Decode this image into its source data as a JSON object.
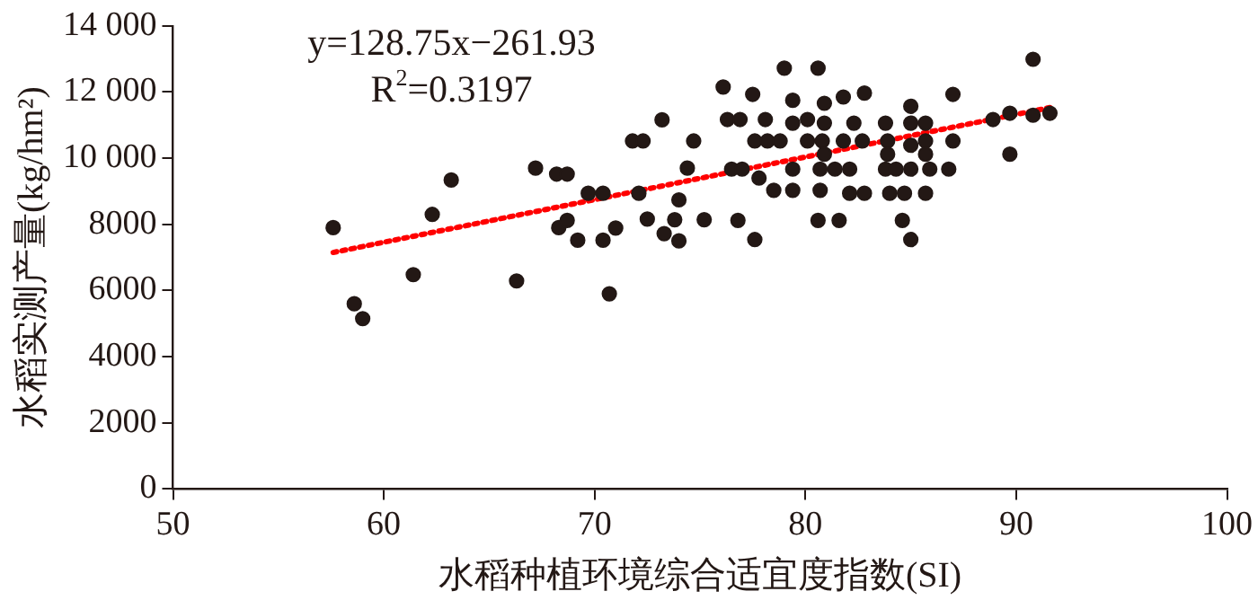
{
  "chart_data": {
    "type": "scatter",
    "xlabel": "水稻种植环境综合适宜度指数(SI)",
    "ylabel": "水稻实测产量(kg/hm²)",
    "xlim": [
      50,
      100
    ],
    "xticks": [
      50,
      60,
      70,
      80,
      90,
      100
    ],
    "ylim": [
      0,
      14000
    ],
    "yticks": [
      0,
      2000,
      4000,
      6000,
      8000,
      {
        "value": 10000,
        "label": "10 000"
      },
      {
        "value": 12000,
        "label": "12 000"
      },
      {
        "value": 14000,
        "label": "14 000"
      }
    ],
    "grid": false,
    "legend": false,
    "marker": "circle",
    "annotations": [
      "y=128.75x−261.93",
      "R$^{2}$=0.3197"
    ],
    "series": [
      {
        "type": "scatter",
        "color": "#231815",
        "x": [
          57.6,
          58.6,
          59.0,
          61.4,
          62.3,
          63.2,
          66.3,
          67.2,
          68.2,
          68.7,
          68.3,
          68.7,
          69.2,
          69.7,
          70.4,
          70.4,
          71.0,
          70.7,
          71.8,
          72.3,
          72.1,
          72.5,
          73.2,
          73.3,
          73.8,
          74.0,
          74.0,
          74.4,
          74.7,
          75.2,
          79.0,
          80.6,
          76.1,
          77.5,
          76.3,
          76.9,
          78.1,
          79.4,
          79.4,
          80.1,
          80.9,
          80.9,
          81.8,
          82.8,
          82.3,
          83.8,
          85.0,
          85.0,
          85.7,
          87.0,
          90.8,
          88.9,
          89.7,
          90.8,
          91.6,
          89.7,
          77.6,
          78.2,
          78.8,
          80.1,
          80.8,
          81.8,
          82.7,
          83.9,
          85.0,
          85.7,
          87.0,
          80.9,
          83.9,
          85.7,
          76.5,
          77.0,
          77.8,
          79.4,
          80.7,
          81.4,
          82.1,
          83.8,
          84.3,
          85.0,
          85.9,
          86.8,
          78.5,
          79.4,
          80.7,
          82.1,
          82.8,
          84.0,
          84.7,
          85.7,
          76.8,
          80.6,
          81.6,
          84.6,
          77.6,
          85.0
        ],
        "values": [
          7900,
          5600,
          5150,
          6480,
          8300,
          9340,
          6290,
          9700,
          9520,
          9520,
          7900,
          8120,
          7520,
          8940,
          8940,
          7520,
          7890,
          5900,
          10520,
          10520,
          8940,
          8160,
          11160,
          7720,
          8140,
          7500,
          8740,
          9700,
          10520,
          8140,
          12720,
          12720,
          12150,
          11930,
          11170,
          11170,
          11170,
          11750,
          11060,
          11170,
          11660,
          11060,
          11850,
          11970,
          11060,
          11060,
          11570,
          11060,
          11060,
          11930,
          12990,
          11170,
          11360,
          11300,
          11360,
          10120,
          10520,
          10520,
          10520,
          10520,
          10520,
          10520,
          10520,
          10520,
          10390,
          10520,
          10520,
          10120,
          10120,
          10120,
          9670,
          9670,
          9400,
          9670,
          9670,
          9670,
          9670,
          9670,
          9670,
          9670,
          9670,
          9670,
          9030,
          9030,
          9030,
          8940,
          8940,
          8940,
          8940,
          8940,
          8120,
          8120,
          8120,
          8120,
          7540,
          7540
        ]
      },
      {
        "type": "line",
        "color": "#ff0000",
        "line_style": "dotted",
        "marker": "none",
        "x": [
          57.6,
          91.6
        ],
        "values": [
          7150,
          11530
        ]
      }
    ]
  }
}
